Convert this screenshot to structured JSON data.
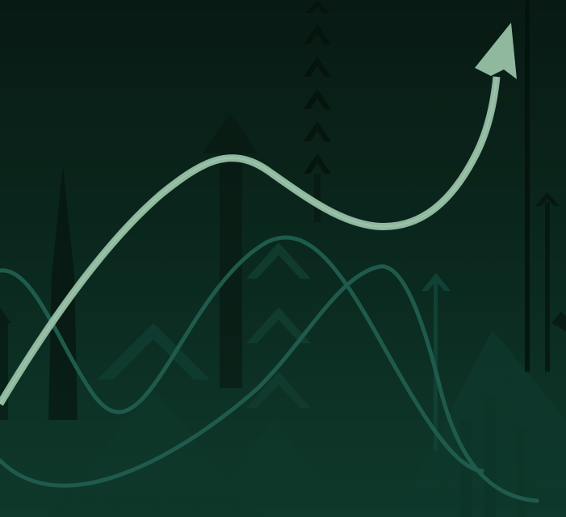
{
  "colors": {
    "bg_top": "#081a13",
    "bg_bottom": "#0f3a2c",
    "primary_curve": "#8fb89f",
    "secondary_curve": "#1f5b4c",
    "dark_arrow": "#07150f",
    "mid_arrow": "#134235"
  },
  "icons": [
    "trend-up-arrow-icon",
    "upward-arrow-icon",
    "chevron-up-icon"
  ]
}
